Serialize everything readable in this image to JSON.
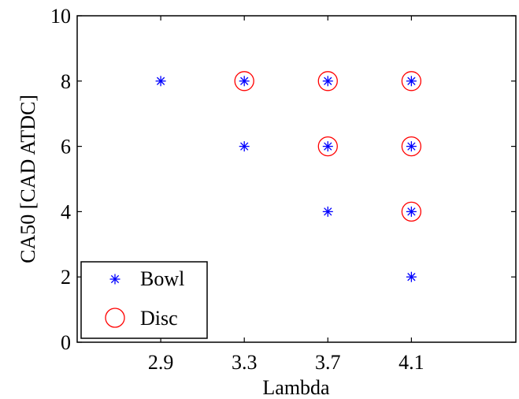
{
  "chart_data": {
    "type": "scatter",
    "xlabel": "Lambda",
    "ylabel": "CA50 [CAD ATDC]",
    "xlim": [
      2.5,
      4.6
    ],
    "ylim": [
      0,
      10
    ],
    "x_ticks": [
      2.9,
      3.3,
      3.7,
      4.1
    ],
    "x_tick_labels": [
      "2.9",
      "3.3",
      "3.7",
      "4.1"
    ],
    "y_ticks": [
      0,
      2,
      4,
      6,
      8,
      10
    ],
    "y_tick_labels": [
      "0",
      "2",
      "4",
      "6",
      "8",
      "10"
    ],
    "grid": false,
    "legend_position": "bottom-left",
    "series": [
      {
        "name": "Bowl",
        "marker": "asterisk",
        "color": "#0000ff",
        "points": [
          {
            "x": 2.9,
            "y": 8
          },
          {
            "x": 3.3,
            "y": 8
          },
          {
            "x": 3.3,
            "y": 6
          },
          {
            "x": 3.7,
            "y": 8
          },
          {
            "x": 3.7,
            "y": 6
          },
          {
            "x": 3.7,
            "y": 4
          },
          {
            "x": 4.1,
            "y": 8
          },
          {
            "x": 4.1,
            "y": 6
          },
          {
            "x": 4.1,
            "y": 4
          },
          {
            "x": 4.1,
            "y": 2
          }
        ]
      },
      {
        "name": "Disc",
        "marker": "circle",
        "color": "#ff0000",
        "points": [
          {
            "x": 3.3,
            "y": 8
          },
          {
            "x": 3.7,
            "y": 8
          },
          {
            "x": 3.7,
            "y": 6
          },
          {
            "x": 4.1,
            "y": 8
          },
          {
            "x": 4.1,
            "y": 6
          },
          {
            "x": 4.1,
            "y": 4
          }
        ]
      }
    ]
  }
}
